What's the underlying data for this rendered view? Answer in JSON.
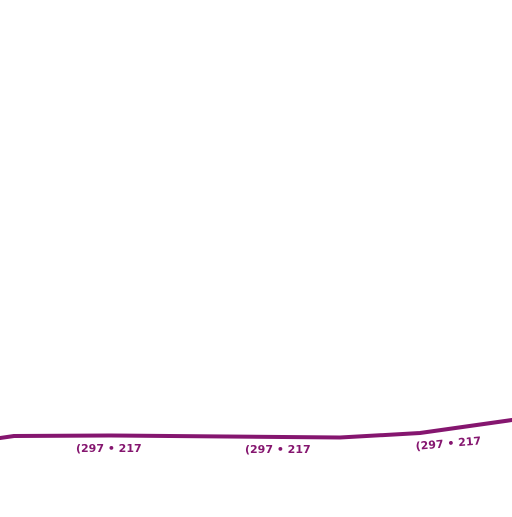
{
  "map": {
    "background_color": "#ffffff",
    "route": {
      "color": "#85166f"
    },
    "route_labels": [
      {
        "text": "(297 • 217"
      },
      {
        "text": "(297 • 217"
      },
      {
        "text": "(297 • 217"
      }
    ]
  }
}
